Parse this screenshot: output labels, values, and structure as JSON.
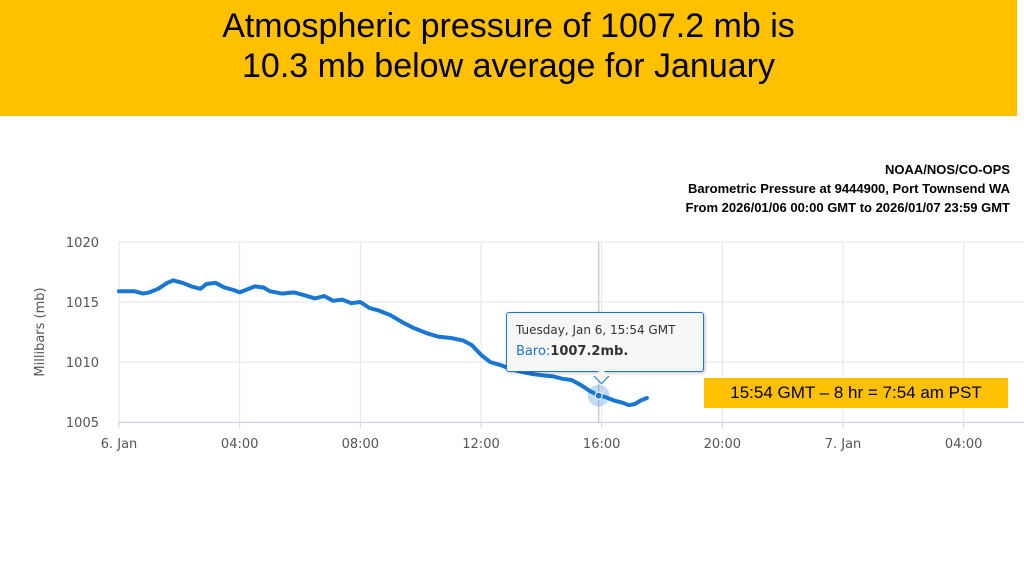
{
  "banner": {
    "line1": "Atmospheric pressure of 1007.2 mb is",
    "line2": "10.3 mb below average for January",
    "color": "#FFC000"
  },
  "chart_data": {
    "type": "line",
    "title": "NOAA/NOS/CO-OPS",
    "subtitle": "Barometric Pressure at 9444900, Port Townsend WA",
    "subtitle2": "From 2026/01/06 00:00 GMT to 2026/01/07 23:59 GMT",
    "xlabel": "",
    "ylabel": "Millibars (mb)",
    "xlim": [
      0,
      30
    ],
    "ylim": [
      1005,
      1020
    ],
    "grid": true,
    "y_ticks": [
      1005,
      1010,
      1015,
      1020
    ],
    "x_ticks": [
      {
        "value": 0,
        "label": "6. Jan"
      },
      {
        "value": 4,
        "label": "04:00"
      },
      {
        "value": 8,
        "label": "08:00"
      },
      {
        "value": 12,
        "label": "12:00"
      },
      {
        "value": 16,
        "label": "16:00"
      },
      {
        "value": 20,
        "label": "20:00"
      },
      {
        "value": 24,
        "label": "7. Jan"
      },
      {
        "value": 28,
        "label": "04:00"
      }
    ],
    "series": [
      {
        "name": "Baro",
        "color": "#1976D2",
        "x": [
          0,
          0.5,
          0.8,
          1.0,
          1.3,
          1.6,
          1.8,
          2.1,
          2.4,
          2.7,
          2.9,
          3.2,
          3.5,
          3.8,
          4.0,
          4.2,
          4.5,
          4.8,
          5.0,
          5.4,
          5.8,
          6.1,
          6.5,
          6.8,
          7.1,
          7.4,
          7.7,
          8.0,
          8.3,
          8.6,
          9.0,
          9.4,
          9.8,
          10.2,
          10.6,
          11.0,
          11.4,
          11.7,
          12.0,
          12.3,
          12.7,
          13.0,
          13.3,
          13.7,
          14.0,
          14.4,
          14.7,
          15.0,
          15.3,
          15.6,
          15.9,
          16.1,
          16.4,
          16.7,
          16.9,
          17.1,
          17.3,
          17.5
        ],
        "values": [
          1015.9,
          1015.9,
          1015.7,
          1015.8,
          1016.1,
          1016.6,
          1016.8,
          1016.6,
          1016.3,
          1016.1,
          1016.5,
          1016.6,
          1016.2,
          1016.0,
          1015.8,
          1016.0,
          1016.3,
          1016.2,
          1015.9,
          1015.7,
          1015.8,
          1015.6,
          1015.3,
          1015.5,
          1015.1,
          1015.2,
          1014.9,
          1015.0,
          1014.5,
          1014.3,
          1013.9,
          1013.3,
          1012.8,
          1012.4,
          1012.1,
          1012.0,
          1011.8,
          1011.4,
          1010.6,
          1010.0,
          1009.7,
          1009.4,
          1009.2,
          1009.0,
          1008.9,
          1008.8,
          1008.6,
          1008.5,
          1008.1,
          1007.6,
          1007.2,
          1007.1,
          1006.8,
          1006.6,
          1006.4,
          1006.5,
          1006.8,
          1007.0
        ]
      }
    ],
    "highlight": {
      "x": 15.9,
      "value": 1007.2
    }
  },
  "tooltip": {
    "date": "Tuesday, Jan 6, 15:54 GMT",
    "series_label": "Baro",
    "value_text": "1007.2mb."
  },
  "callout": {
    "text": "15:54 GMT – 8 hr = 7:54 am PST",
    "color": "#FFC000"
  }
}
